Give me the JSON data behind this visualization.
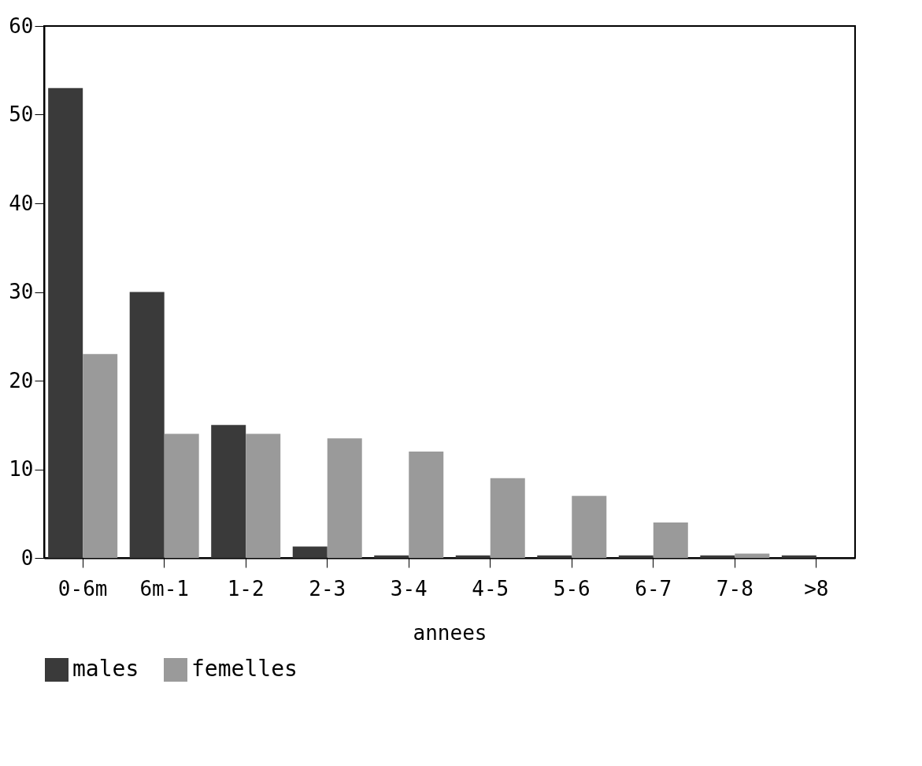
{
  "chart_data": {
    "type": "bar",
    "xlabel": "annees",
    "categories": [
      "0-6m",
      "6m-1",
      "1-2",
      "2-3",
      "3-4",
      "4-5",
      "5-6",
      "6-7",
      "7-8",
      ">8"
    ],
    "series": [
      {
        "name": "males",
        "color": "#3a3a3a",
        "values": [
          53,
          30,
          15,
          1.3,
          0.3,
          0.3,
          0.3,
          0.3,
          0.3,
          0.3
        ]
      },
      {
        "name": "femelles",
        "color": "#9a9a9a",
        "values": [
          23,
          14,
          14,
          13.5,
          12,
          9,
          7,
          4,
          0.5,
          0
        ]
      }
    ],
    "ylim": [
      0,
      60
    ],
    "yticks": [
      0,
      10,
      20,
      30,
      40,
      50,
      60
    ],
    "grid": false,
    "legend": "bottom"
  }
}
